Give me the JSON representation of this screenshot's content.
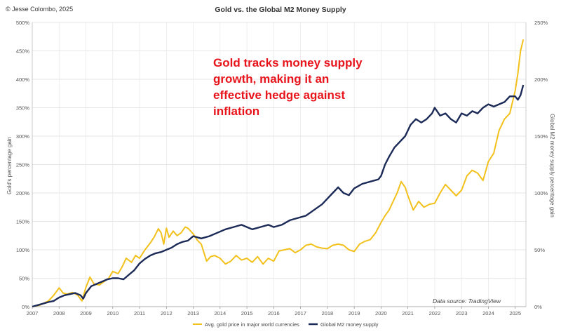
{
  "chart_data": {
    "type": "line",
    "title": "Gold vs. the Global M2 Money Supply",
    "copyright": "© Jesse Colombo, 2025",
    "annotation": "Gold tracks money supply growth, making it an effective hedge against inflation",
    "annotation_lines": [
      "Gold tracks money supply",
      "growth, making it an",
      "effective hedge against",
      "inflation"
    ],
    "annotation_color": "#e8141b",
    "source": "Data source: TradingView",
    "y_left_label": "Gold's percentage gain",
    "y_right_label": "Global M2 money supply percentage gain",
    "y_left_ticks": [
      "0%",
      "50%",
      "100%",
      "150%",
      "200%",
      "250%",
      "300%",
      "350%",
      "400%",
      "450%",
      "500%"
    ],
    "y_right_ticks": [
      "0%",
      "50%",
      "100%",
      "150%",
      "200%",
      "250%"
    ],
    "x_ticks": [
      "2007",
      "2008",
      "2009",
      "2010",
      "2011",
      "2012",
      "2013",
      "2014",
      "2015",
      "2016",
      "2017",
      "2018",
      "2019",
      "2020",
      "2021",
      "2022",
      "2023",
      "2024",
      "2025"
    ],
    "xlim": [
      2007,
      2025.4
    ],
    "ylim_left": [
      0,
      500
    ],
    "ylim_right": [
      0,
      250
    ],
    "grid": true,
    "legend_position": "bottom-center",
    "series": [
      {
        "name": "Avg. gold price in major world currencies",
        "axis": "left",
        "color": "#f2c11c",
        "x": [
          2007.0,
          2007.3,
          2007.6,
          2007.8,
          2008.0,
          2008.15,
          2008.3,
          2008.5,
          2008.7,
          2008.85,
          2009.0,
          2009.15,
          2009.3,
          2009.5,
          2009.7,
          2009.85,
          2010.0,
          2010.2,
          2010.35,
          2010.5,
          2010.7,
          2010.85,
          2011.0,
          2011.2,
          2011.4,
          2011.55,
          2011.7,
          2011.8,
          2011.9,
          2012.0,
          2012.1,
          2012.25,
          2012.4,
          2012.55,
          2012.7,
          2012.8,
          2013.0,
          2013.15,
          2013.3,
          2013.5,
          2013.65,
          2013.8,
          2014.0,
          2014.2,
          2014.4,
          2014.6,
          2014.8,
          2015.0,
          2015.2,
          2015.4,
          2015.6,
          2015.8,
          2016.0,
          2016.2,
          2016.4,
          2016.6,
          2016.8,
          2017.0,
          2017.2,
          2017.4,
          2017.6,
          2017.8,
          2018.0,
          2018.2,
          2018.4,
          2018.6,
          2018.8,
          2019.0,
          2019.2,
          2019.4,
          2019.6,
          2019.8,
          2020.0,
          2020.15,
          2020.3,
          2020.45,
          2020.6,
          2020.75,
          2020.9,
          2021.0,
          2021.2,
          2021.4,
          2021.6,
          2021.8,
          2022.0,
          2022.2,
          2022.4,
          2022.6,
          2022.8,
          2023.0,
          2023.2,
          2023.4,
          2023.6,
          2023.8,
          2024.0,
          2024.2,
          2024.4,
          2024.6,
          2024.8,
          2025.0,
          2025.1,
          2025.2,
          2025.3
        ],
        "y": [
          0,
          3,
          10,
          20,
          33,
          24,
          22,
          25,
          20,
          10,
          34,
          52,
          40,
          38,
          45,
          50,
          62,
          58,
          70,
          85,
          78,
          90,
          85,
          100,
          112,
          123,
          137,
          130,
          110,
          138,
          122,
          133,
          125,
          130,
          140,
          138,
          128,
          117,
          110,
          80,
          88,
          90,
          85,
          75,
          80,
          90,
          82,
          85,
          78,
          88,
          75,
          85,
          80,
          98,
          100,
          102,
          95,
          100,
          108,
          110,
          105,
          103,
          102,
          108,
          110,
          108,
          100,
          97,
          110,
          115,
          118,
          130,
          148,
          160,
          170,
          185,
          200,
          220,
          210,
          195,
          170,
          185,
          175,
          180,
          182,
          200,
          215,
          205,
          195,
          205,
          230,
          240,
          235,
          222,
          255,
          270,
          310,
          330,
          340,
          380,
          410,
          450,
          470
        ]
      },
      {
        "name": "Global M2 money supply",
        "axis": "right",
        "color": "#1b2a57",
        "x": [
          2007.0,
          2007.3,
          2007.6,
          2007.8,
          2008.0,
          2008.2,
          2008.4,
          2008.6,
          2008.8,
          2008.9,
          2009.0,
          2009.2,
          2009.4,
          2009.6,
          2009.8,
          2010.0,
          2010.2,
          2010.4,
          2010.6,
          2010.8,
          2011.0,
          2011.2,
          2011.4,
          2011.6,
          2011.8,
          2012.0,
          2012.2,
          2012.4,
          2012.6,
          2012.8,
          2013.0,
          2013.3,
          2013.6,
          2013.9,
          2014.2,
          2014.5,
          2014.8,
          2015.0,
          2015.2,
          2015.5,
          2015.8,
          2016.0,
          2016.3,
          2016.6,
          2016.9,
          2017.2,
          2017.5,
          2017.8,
          2018.0,
          2018.2,
          2018.4,
          2018.6,
          2018.8,
          2019.0,
          2019.3,
          2019.6,
          2019.9,
          2020.0,
          2020.15,
          2020.3,
          2020.5,
          2020.7,
          2020.9,
          2021.1,
          2021.3,
          2021.5,
          2021.7,
          2021.9,
          2022.0,
          2022.2,
          2022.4,
          2022.6,
          2022.8,
          2023.0,
          2023.2,
          2023.4,
          2023.6,
          2023.8,
          2024.0,
          2024.2,
          2024.4,
          2024.6,
          2024.8,
          2025.0,
          2025.1,
          2025.2,
          2025.3
        ],
        "y": [
          0,
          2,
          4,
          5,
          8,
          10,
          11,
          12,
          10,
          7,
          12,
          18,
          20,
          22,
          24,
          25,
          25,
          24,
          28,
          32,
          38,
          42,
          45,
          47,
          48,
          50,
          52,
          55,
          57,
          58,
          62,
          60,
          62,
          65,
          68,
          70,
          72,
          70,
          68,
          70,
          72,
          70,
          72,
          76,
          78,
          80,
          85,
          90,
          95,
          100,
          105,
          100,
          98,
          104,
          108,
          110,
          112,
          115,
          125,
          132,
          140,
          145,
          150,
          160,
          165,
          162,
          165,
          170,
          175,
          168,
          170,
          165,
          162,
          170,
          168,
          172,
          170,
          175,
          178,
          176,
          178,
          180,
          185,
          185,
          182,
          186,
          195
        ]
      }
    ]
  }
}
